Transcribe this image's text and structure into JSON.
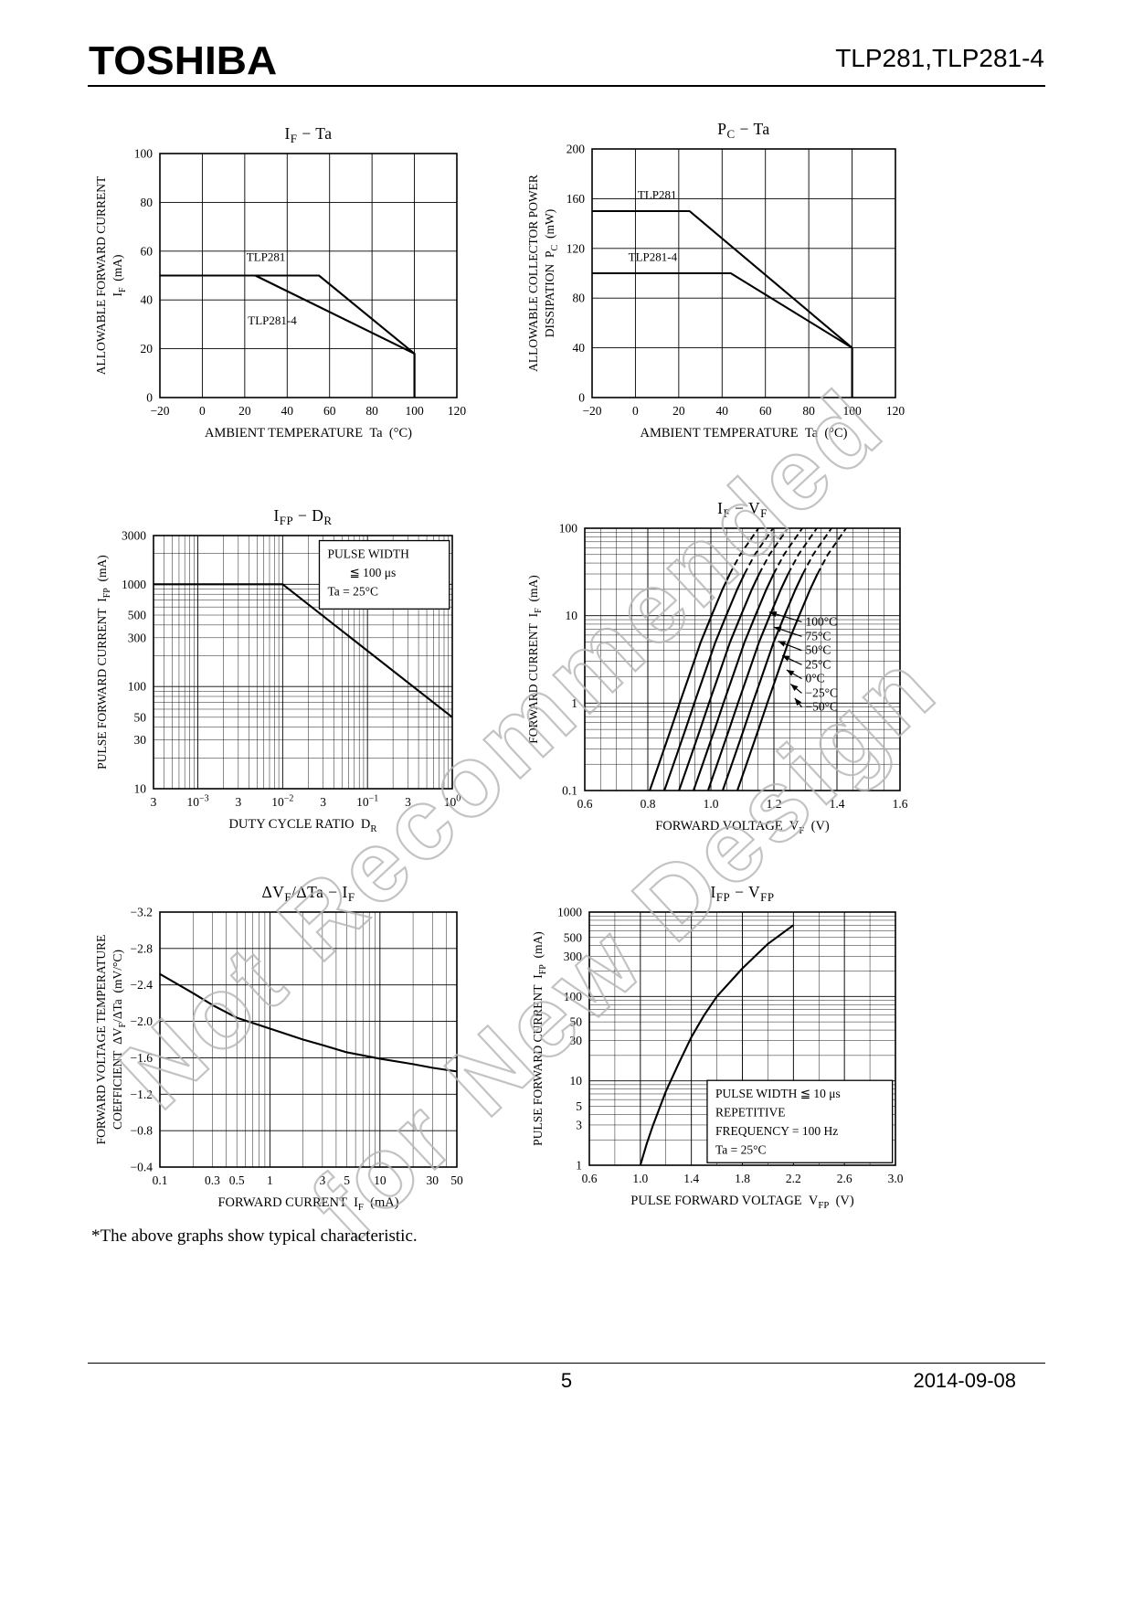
{
  "header": {
    "brand": "TOSHIBA",
    "part": "TLP281,TLP281-4"
  },
  "watermark": {
    "line1": "Not Recommended",
    "line2": "for New Design"
  },
  "footnote": "*The above graphs show typical characteristic.",
  "footer": {
    "page": "5",
    "date": "2014-09-08"
  },
  "chart_data": [
    {
      "id": "if-ta",
      "type": "line",
      "title": "I_{F} − Ta",
      "x": {
        "scale": "linear",
        "domain": [
          -20,
          120
        ],
        "label": "AMBIENT TEMPERATURE  Ta  (°C)",
        "ticks": [
          {
            "v": -20,
            "l": "−20"
          },
          {
            "v": 0,
            "l": "0"
          },
          {
            "v": 20,
            "l": "20"
          },
          {
            "v": 40,
            "l": "40"
          },
          {
            "v": 60,
            "l": "60"
          },
          {
            "v": 80,
            "l": "80"
          },
          {
            "v": 100,
            "l": "100"
          },
          {
            "v": 120,
            "l": "120"
          }
        ]
      },
      "y": {
        "scale": "linear",
        "domain": [
          0,
          100
        ],
        "label_lines": [
          "ALLOWABLE FORWARD CURRENT",
          "I_{F}  (mA)"
        ],
        "ticks": [
          {
            "v": 0,
            "l": "0"
          },
          {
            "v": 20,
            "l": "20"
          },
          {
            "v": 40,
            "l": "40"
          },
          {
            "v": 60,
            "l": "60"
          },
          {
            "v": 80,
            "l": "80"
          },
          {
            "v": 100,
            "l": "100"
          }
        ]
      },
      "series": [
        {
          "name": "TLP281",
          "points": [
            [
              -20,
              50
            ],
            [
              55,
              50
            ],
            [
              100,
              18
            ],
            [
              100,
              0
            ]
          ]
        },
        {
          "name": "TLP281-4",
          "points": [
            [
              -20,
              50
            ],
            [
              25,
              50
            ],
            [
              100,
              18
            ],
            [
              100,
              0
            ]
          ]
        }
      ],
      "labels": [
        {
          "t": "TLP281",
          "x": 30,
          "y": 56
        },
        {
          "t": "TLP281-4",
          "x": 33,
          "y": 30
        }
      ]
    },
    {
      "id": "pc-ta",
      "type": "line",
      "title": "P_{C} − Ta",
      "x": {
        "scale": "linear",
        "domain": [
          -20,
          120
        ],
        "label": "AMBIENT TEMPERATURE  Ta  (°C)",
        "ticks": [
          {
            "v": -20,
            "l": "−20"
          },
          {
            "v": 0,
            "l": "0"
          },
          {
            "v": 20,
            "l": "20"
          },
          {
            "v": 40,
            "l": "40"
          },
          {
            "v": 60,
            "l": "60"
          },
          {
            "v": 80,
            "l": "80"
          },
          {
            "v": 100,
            "l": "100"
          },
          {
            "v": 120,
            "l": "120"
          }
        ]
      },
      "y": {
        "scale": "linear",
        "domain": [
          0,
          200
        ],
        "label_lines": [
          "ALLOWABLE COLLECTOR POWER",
          "DISSIPATION  P_{C}  (mW)"
        ],
        "ticks": [
          {
            "v": 0,
            "l": "0"
          },
          {
            "v": 40,
            "l": "40"
          },
          {
            "v": 80,
            "l": "80"
          },
          {
            "v": 120,
            "l": "120"
          },
          {
            "v": 160,
            "l": "160"
          },
          {
            "v": 200,
            "l": "200"
          }
        ]
      },
      "series": [
        {
          "name": "TLP281",
          "points": [
            [
              -20,
              150
            ],
            [
              25,
              150
            ],
            [
              100,
              40
            ],
            [
              100,
              0
            ]
          ]
        },
        {
          "name": "TLP281-4",
          "points": [
            [
              -20,
              100
            ],
            [
              44,
              100
            ],
            [
              100,
              40
            ],
            [
              100,
              0
            ]
          ]
        }
      ],
      "labels": [
        {
          "t": "TLP281",
          "x": 10,
          "y": 160
        },
        {
          "t": "TLP281-4",
          "x": 8,
          "y": 110
        }
      ]
    },
    {
      "id": "ifp-dr",
      "type": "line",
      "title": "I_{FP} − D_{R}",
      "x": {
        "scale": "log",
        "domain": [
          0.0003,
          1
        ],
        "label": "DUTY CYCLE RATIO  D_{R}",
        "ticks": [
          {
            "v": 0.0003,
            "l": "3"
          },
          {
            "v": 0.001,
            "l": "10^{−3}"
          },
          {
            "v": 0.003,
            "l": "3"
          },
          {
            "v": 0.01,
            "l": "10^{−2}"
          },
          {
            "v": 0.03,
            "l": "3"
          },
          {
            "v": 0.1,
            "l": "10^{−1}"
          },
          {
            "v": 0.3,
            "l": "3"
          },
          {
            "v": 1,
            "l": "10^{0}"
          }
        ]
      },
      "y": {
        "scale": "log",
        "domain": [
          10,
          3000
        ],
        "label_lines": [
          "PULSE FORWARD CURRENT  I_{FP}  (mA)"
        ],
        "ticks": [
          {
            "v": 10,
            "l": "10"
          },
          {
            "v": 30,
            "l": "30"
          },
          {
            "v": 50,
            "l": "50"
          },
          {
            "v": 100,
            "l": "100"
          },
          {
            "v": 300,
            "l": "300"
          },
          {
            "v": 500,
            "l": "500"
          },
          {
            "v": 1000,
            "l": "1000"
          },
          {
            "v": 3000,
            "l": "3000"
          }
        ]
      },
      "series": [
        {
          "name": "IFP max",
          "points": [
            [
              0.0003,
              1000
            ],
            [
              0.01,
              1000
            ],
            [
              1,
              50
            ]
          ]
        }
      ],
      "annotations": [
        {
          "fx": 0.555,
          "fy": 0.02,
          "fw": 0.435,
          "fh": 0.27,
          "lines": [
            {
              "t": "PULSE WIDTH"
            },
            {
              "t": "≦ 100 μs",
              "indent": 1
            },
            {
              "t": "Ta = 25°C"
            }
          ]
        }
      ]
    },
    {
      "id": "if-vf",
      "type": "line",
      "title": "I_{F} − V_{F}",
      "x": {
        "scale": "linear",
        "domain": [
          0.6,
          1.6
        ],
        "minorStep": 0.05,
        "label": "FORWARD VOLTAGE  V_{F}  (V)",
        "ticks": [
          {
            "v": 0.6,
            "l": "0.6"
          },
          {
            "v": 0.8,
            "l": "0.8"
          },
          {
            "v": 1.0,
            "l": "1.0"
          },
          {
            "v": 1.2,
            "l": "1.2"
          },
          {
            "v": 1.4,
            "l": "1.4"
          },
          {
            "v": 1.6,
            "l": "1.6"
          }
        ]
      },
      "y": {
        "scale": "log",
        "domain": [
          0.1,
          100
        ],
        "label_lines": [
          "FORWARD CURRENT  I_{F}  (mA)"
        ],
        "ticks": [
          {
            "v": 0.1,
            "l": "0.1"
          },
          {
            "v": 1,
            "l": "1"
          },
          {
            "v": 10,
            "l": "10"
          },
          {
            "v": 100,
            "l": "100"
          }
        ]
      },
      "base_points": [
        [
          0.945,
          0.1
        ],
        [
          0.974,
          0.2
        ],
        [
          1.012,
          0.5
        ],
        [
          1.04,
          1
        ],
        [
          1.069,
          2
        ],
        [
          1.107,
          5
        ],
        [
          1.141,
          10
        ],
        [
          1.176,
          20
        ],
        [
          1.199,
          30
        ],
        [
          1.232,
          50
        ],
        [
          1.29,
          100
        ]
      ],
      "series": [
        {
          "name": "100°C",
          "vshift": -0.139,
          "dashFromY": 30
        },
        {
          "name": "75°C",
          "vshift": -0.0925,
          "dashFromY": 30
        },
        {
          "name": "50°C",
          "vshift": -0.046,
          "dashFromY": 30
        },
        {
          "name": "25°C",
          "vshift": 0,
          "dashFromY": 30
        },
        {
          "name": "0°C",
          "vshift": 0.046,
          "dashFromY": 30
        },
        {
          "name": "−25°C",
          "vshift": 0.0925,
          "dashFromY": 30
        },
        {
          "name": "−50°C",
          "vshift": 0.139,
          "dashFromY": 30
        }
      ],
      "pointers": [
        {
          "t": "100°C",
          "tx": 1.3,
          "ty": 8.5,
          "px": 1.185,
          "py": 11
        },
        {
          "t": "75°C",
          "tx": 1.3,
          "ty": 5.8,
          "px": 1.2,
          "py": 7.4
        },
        {
          "t": "50°C",
          "tx": 1.3,
          "ty": 4.0,
          "px": 1.213,
          "py": 5.1
        },
        {
          "t": "25°C",
          "tx": 1.3,
          "ty": 2.75,
          "px": 1.226,
          "py": 3.5
        },
        {
          "t": "0°C",
          "tx": 1.3,
          "ty": 1.9,
          "px": 1.24,
          "py": 2.4
        },
        {
          "t": "−25°C",
          "tx": 1.3,
          "ty": 1.3,
          "px": 1.253,
          "py": 1.65
        },
        {
          "t": "−50°C",
          "tx": 1.3,
          "ty": 0.9,
          "px": 1.266,
          "py": 1.14
        }
      ]
    },
    {
      "id": "dvf-dta-if",
      "type": "line",
      "title": "ΔV_{F}/ΔTa − I_{F}",
      "x": {
        "scale": "log",
        "domain": [
          0.1,
          50
        ],
        "label": "FORWARD CURRENT  I_{F}  (mA)",
        "ticks": [
          {
            "v": 0.1,
            "l": "0.1"
          },
          {
            "v": 0.3,
            "l": "0.3"
          },
          {
            "v": 0.5,
            "l": "0.5"
          },
          {
            "v": 1,
            "l": "1"
          },
          {
            "v": 3,
            "l": "3"
          },
          {
            "v": 5,
            "l": "5"
          },
          {
            "v": 10,
            "l": "10"
          },
          {
            "v": 30,
            "l": "30"
          },
          {
            "v": 50,
            "l": "50"
          }
        ]
      },
      "y": {
        "scale": "linear",
        "domain": [
          -0.4,
          -3.2
        ],
        "label_lines": [
          "FORWARD VOLTAGE TEMPERATURE",
          "COEFFICIENT  ΔV_{F}/ΔTa  (mV/°C)"
        ],
        "ticks": [
          {
            "v": -3.2,
            "l": "−3.2"
          },
          {
            "v": -2.8,
            "l": "−2.8"
          },
          {
            "v": -2.4,
            "l": "−2.4"
          },
          {
            "v": -2.0,
            "l": "−2.0"
          },
          {
            "v": -1.6,
            "l": "−1.6"
          },
          {
            "v": -1.2,
            "l": "−1.2"
          },
          {
            "v": -0.8,
            "l": "−0.8"
          },
          {
            "v": -0.4,
            "l": "−0.4"
          }
        ]
      },
      "series": [
        {
          "name": "ΔVF/ΔTa",
          "points": [
            [
              0.1,
              -2.52
            ],
            [
              0.2,
              -2.31
            ],
            [
              0.3,
              -2.18
            ],
            [
              0.5,
              -2.04
            ],
            [
              1,
              -1.92
            ],
            [
              2,
              -1.8
            ],
            [
              3,
              -1.74
            ],
            [
              5,
              -1.66
            ],
            [
              10,
              -1.59
            ],
            [
              20,
              -1.53
            ],
            [
              30,
              -1.49
            ],
            [
              50,
              -1.45
            ]
          ]
        }
      ]
    },
    {
      "id": "ifp-vfp",
      "type": "line",
      "title": "I_{FP} − V_{FP}",
      "x": {
        "scale": "linear",
        "domain": [
          0.6,
          3.0
        ],
        "minorStep": 0.2,
        "label": "PULSE FORWARD VOLTAGE  V_{FP}  (V)",
        "ticks": [
          {
            "v": 0.6,
            "l": "0.6"
          },
          {
            "v": 1.0,
            "l": "1.0"
          },
          {
            "v": 1.4,
            "l": "1.4"
          },
          {
            "v": 1.8,
            "l": "1.8"
          },
          {
            "v": 2.2,
            "l": "2.2"
          },
          {
            "v": 2.6,
            "l": "2.6"
          },
          {
            "v": 3.0,
            "l": "3.0"
          }
        ]
      },
      "y": {
        "scale": "log",
        "domain": [
          1,
          1000
        ],
        "label_lines": [
          "PULSE FORWARD CURRENT  I_{FP}  (mA)"
        ],
        "ticks": [
          {
            "v": 1,
            "l": "1"
          },
          {
            "v": 3,
            "l": "3"
          },
          {
            "v": 5,
            "l": "5"
          },
          {
            "v": 10,
            "l": "10"
          },
          {
            "v": 30,
            "l": "30"
          },
          {
            "v": 50,
            "l": "50"
          },
          {
            "v": 100,
            "l": "100"
          },
          {
            "v": 300,
            "l": "300"
          },
          {
            "v": 500,
            "l": "500"
          },
          {
            "v": 1000,
            "l": "1000"
          }
        ]
      },
      "series": [
        {
          "name": "IFP",
          "points": [
            [
              1.0,
              1
            ],
            [
              1.05,
              1.8
            ],
            [
              1.1,
              3
            ],
            [
              1.2,
              7.5
            ],
            [
              1.3,
              16
            ],
            [
              1.4,
              33
            ],
            [
              1.5,
              60
            ],
            [
              1.6,
              100
            ],
            [
              1.8,
              215
            ],
            [
              2.0,
              420
            ],
            [
              2.2,
              700
            ]
          ]
        }
      ],
      "annotations": [
        {
          "fx": 0.385,
          "fy": 0.665,
          "fw": 0.605,
          "fh": 0.325,
          "lines": [
            {
              "t": "PULSE WIDTH ≦ 10 μs"
            },
            {
              "t": "REPETITIVE"
            },
            {
              "t": "FREQUENCY = 100 Hz"
            },
            {
              "t": "Ta = 25°C"
            }
          ]
        }
      ]
    }
  ]
}
